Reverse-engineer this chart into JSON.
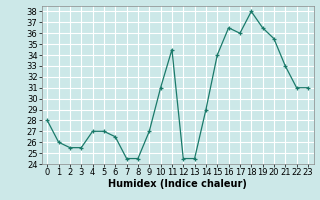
{
  "x": [
    0,
    1,
    2,
    3,
    4,
    5,
    6,
    7,
    8,
    9,
    10,
    11,
    12,
    13,
    14,
    15,
    16,
    17,
    18,
    19,
    20,
    21,
    22,
    23
  ],
  "y": [
    28,
    26,
    25.5,
    25.5,
    27,
    27,
    26.5,
    24.5,
    24.5,
    27,
    31,
    34.5,
    24.5,
    24.5,
    29,
    34,
    36.5,
    36,
    38,
    36.5,
    35.5,
    33,
    31,
    31
  ],
  "line_color": "#1a7a6a",
  "marker": "+",
  "bg_color": "#cce8e8",
  "grid_color": "#ffffff",
  "xlabel": "Humidex (Indice chaleur)",
  "xlim": [
    -0.5,
    23.5
  ],
  "ylim": [
    24,
    38.5
  ],
  "yticks": [
    24,
    25,
    26,
    27,
    28,
    29,
    30,
    31,
    32,
    33,
    34,
    35,
    36,
    37,
    38
  ],
  "xticks": [
    0,
    1,
    2,
    3,
    4,
    5,
    6,
    7,
    8,
    9,
    10,
    11,
    12,
    13,
    14,
    15,
    16,
    17,
    18,
    19,
    20,
    21,
    22,
    23
  ],
  "xlabel_fontsize": 7,
  "tick_fontsize": 6
}
